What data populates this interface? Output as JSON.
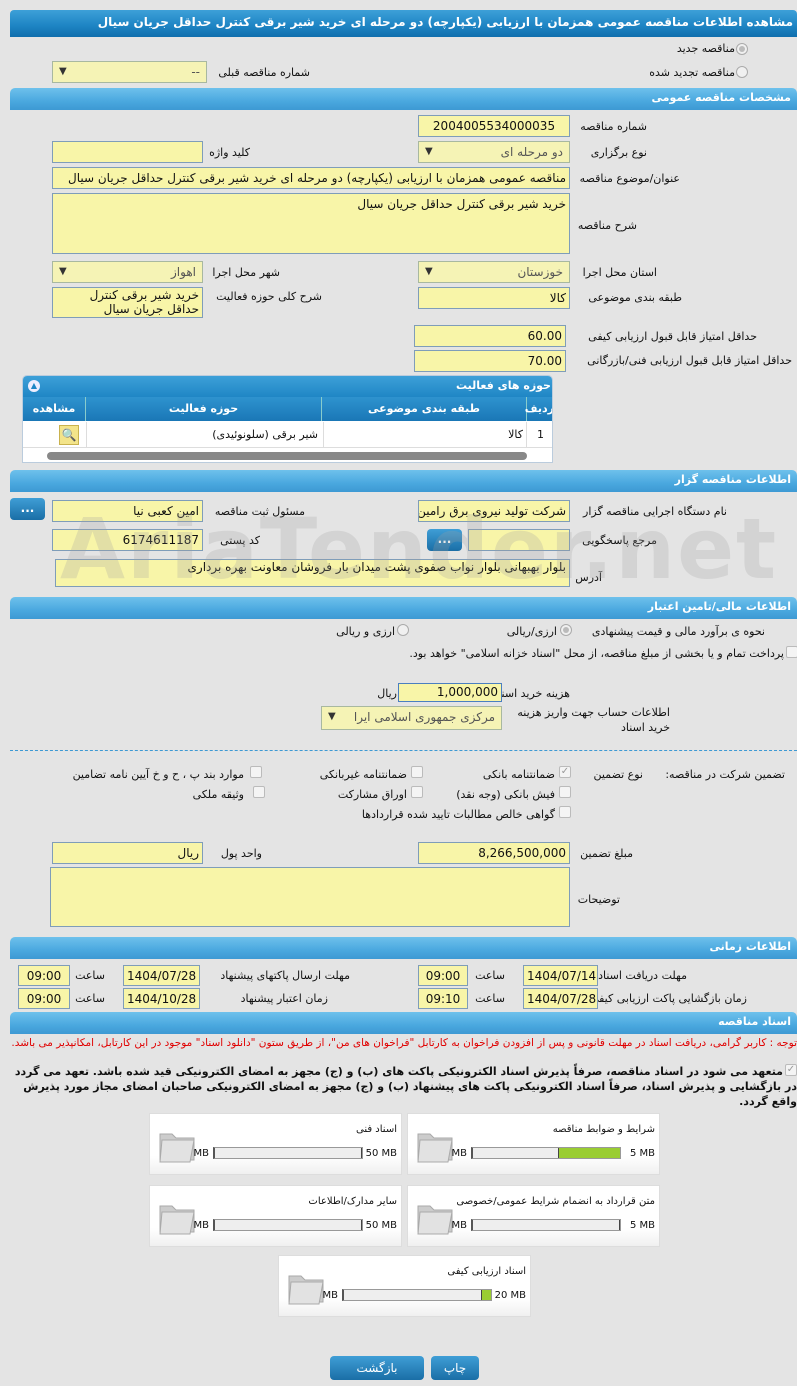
{
  "title": "مشاهده اطلاعات مناقصه عمومی همزمان با ارزیابی (یکپارچه) دو مرحله ای خرید شیر برقی کنترل حداقل جریان سیال",
  "top": {
    "new_tender": "مناقصه جدید",
    "renewed_tender": "مناقصه تجدید شده",
    "prev_number_label": "شماره مناقصه قبلی",
    "prev_number_value": "--"
  },
  "general": {
    "header": "مشخصات مناقصه عمومی",
    "number_label": "شماره مناقصه",
    "number": "2004005534000035",
    "type_label": "نوع برگزاری",
    "type": "دو مرحله ای",
    "keyword_label": "کلید واژه",
    "keyword": "",
    "subject_label": "عنوان/موضوع مناقصه",
    "subject": "مناقصه عمومی همزمان با ارزیابی (یکپارچه) دو مرحله ای خرید شیر برقی کنترل حداقل جریان سیال",
    "desc_label": "شرح مناقصه",
    "desc": "خرید شیر برقی کنترل حداقل جریان سیال",
    "province_label": "استان محل اجرا",
    "province": "خوزستان",
    "city_label": "شهر محل اجرا",
    "city": "اهواز",
    "category_label": "طبقه بندی موضوعی",
    "category": "کالا",
    "scope_label": "شرح کلی حوزه فعالیت",
    "scope": "خرید شیر برقی کنترل حداقل جریان سیال",
    "min_quality_label": "حداقل امتیاز قابل قبول ارزیابی کیفی",
    "min_quality": "60.00",
    "min_tech_label": "حداقل امتیاز قابل قبول ارزیابی فنی/بازرگانی",
    "min_tech": "70.00"
  },
  "activity": {
    "header": "حوزه های فعالیت",
    "columns": [
      "ردیف",
      "طبقه بندی موضوعی",
      "حوزه فعالیت",
      "مشاهده"
    ],
    "rows": [
      {
        "index": "1",
        "category": "کالا",
        "field": "شیر برقی (سلونوئیدی)"
      }
    ]
  },
  "organizer": {
    "header": "اطلاعات مناقصه گزار",
    "org_label": "نام دستگاه اجرایی مناقصه گزار",
    "org": "شرکت تولید نیروی برق رامین",
    "resp_label": "مسئول ثبت مناقصه",
    "resp": "امین کعبی نیا",
    "ref_label": "مرجع پاسخگویی",
    "ref": "",
    "postal_label": "کد پستی",
    "postal": "6174611187",
    "address_label": "آدرس",
    "address": "بلوار بهبهانی بلوار نواب صفوی پشت میدان بار فروشان معاونت بهره برداری",
    "more": "..."
  },
  "finance": {
    "header": "اطلاعات مالی/تامین اعتبار",
    "estimate_label": "نحوه ی برآورد مالی و قیمت پیشنهادی",
    "opt_rial": "ارزی/ریالی",
    "opt_both": "ارزی و ریالی",
    "treasury_text": "پرداخت تمام و یا بخشی از مبلغ مناقصه، از محل \"اسناد خزانه اسلامی\" خواهد بود.",
    "doc_fee_label": "هزینه خرید اسناد",
    "doc_fee": "1,000,000",
    "currency": "ریال",
    "account_label": "اطلاعات حساب جهت واریز هزینه خرید اسناد",
    "account": "مرکزی جمهوری اسلامی ایرا",
    "guarantee_label": "تضمین شرکت در مناقصه:",
    "guarantee_type_label": "نوع تضمین",
    "guarantees": [
      {
        "label": "ضمانتنامه بانکی",
        "checked": true
      },
      {
        "label": "ضمانتنامه غیربانکی",
        "checked": false
      },
      {
        "label": "موارد بند پ ، ح و خ آیین نامه تضامین",
        "checked": false
      },
      {
        "label": "فیش بانکی (وجه نقد)",
        "checked": false
      },
      {
        "label": "اوراق مشارکت",
        "checked": false
      },
      {
        "label": "وثیقه ملکی",
        "checked": false
      },
      {
        "label": "گواهی خالص مطالبات تایید شده قراردادها",
        "checked": false
      }
    ],
    "amount_label": "مبلغ تضمین",
    "amount": "8,266,500,000",
    "unit_label": "واحد پول",
    "unit": "ریال",
    "notes_label": "توضیحات",
    "notes": ""
  },
  "timing": {
    "header": "اطلاعات زمانی",
    "time_label": "ساعت",
    "doc_deadline_label": "مهلت دریافت اسناد",
    "doc_deadline": "1404/07/14",
    "doc_deadline_time": "09:00",
    "submit_label": "مهلت ارسال پاکتهای پیشنهاد",
    "submit": "1404/07/28",
    "submit_time": "09:00",
    "open_label": "زمان بازگشایی پاکت ارزیابی کیفی",
    "open": "1404/07/28",
    "open_time": "09:10",
    "validity_label": "زمان اعتبار پیشنهاد",
    "validity": "1404/10/28",
    "validity_time": "09:00"
  },
  "docs": {
    "header": "اسناد مناقصه",
    "notice": "توجه : کاربر گرامی، دریافت اسناد در مهلت قانونی و پس از افزودن فراخوان به کارتابل \"فراخوان های من\"، از طریق ستون \"دانلود اسناد\" موجود در این کارتابل، امکانپذیر می باشد.",
    "pledge": "متعهد می شود در اسناد مناقصه، صرفاً پذیرش اسناد الکترونیکی پاکت های (ب) و (ج) مجهز به امضای الکترونیکی قید شده باشد. تعهد می گردد در بازگشایی و پذیرش اسناد، صرفاً اسناد الکترونیکی پاکت های پیشنهاد (ب) و (ج) مجهز به امضای الکترونیکی صاحبان امضای مجاز مورد پذیرش واقع گردد.",
    "files": [
      {
        "name": "شرایط و ضوابط مناقصه",
        "current": "2.12 MB",
        "max": "5 MB",
        "fraction": 0.424
      },
      {
        "name": "اسناد فنی",
        "current": "0 MB",
        "max": "50 MB",
        "fraction": 0
      },
      {
        "name": "متن قرارداد به انضمام شرایط عمومی/خصوصی",
        "current": "0 MB",
        "max": "5 MB",
        "fraction": 0
      },
      {
        "name": "سایر مدارک/اطلاعات",
        "current": "0 MB",
        "max": "50 MB",
        "fraction": 0
      },
      {
        "name": "اسناد ارزیابی کیفی",
        "current": "1.32 MB",
        "max": "20 MB",
        "fraction": 0.066
      }
    ]
  },
  "buttons": {
    "back": "بازگشت",
    "print": "چاپ"
  },
  "watermark": "AriaTender.net"
}
